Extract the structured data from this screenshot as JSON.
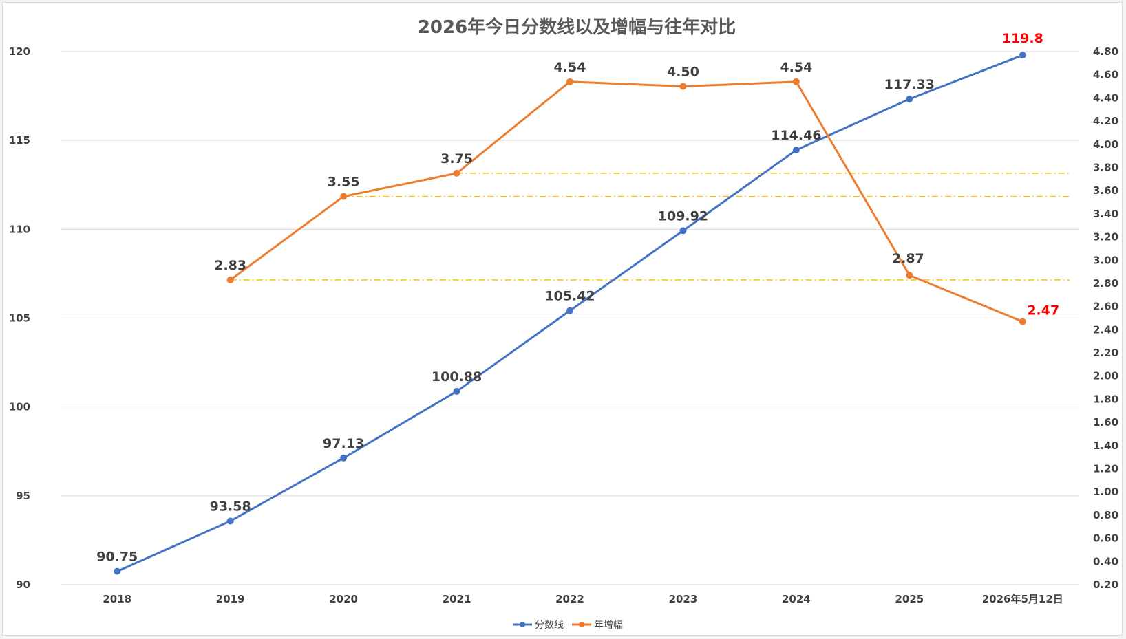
{
  "chart_data": {
    "type": "line",
    "title": "2026年今日分数线以及增幅与往年对比",
    "categories": [
      "2018",
      "2019",
      "2020",
      "2021",
      "2022",
      "2023",
      "2024",
      "2025",
      "2026年5月12日"
    ],
    "series": [
      {
        "name": "分数线",
        "axis": "left",
        "color": "#4472c4",
        "values": [
          90.75,
          93.58,
          97.13,
          100.88,
          105.42,
          109.92,
          114.46,
          117.33,
          119.8
        ],
        "labels": [
          "90.75",
          "93.58",
          "97.13",
          "100.88",
          "105.42",
          "109.92",
          "114.46",
          "117.33",
          "119.8"
        ],
        "highlight_last": true
      },
      {
        "name": "年增幅",
        "axis": "right",
        "color": "#ed7d31",
        "values": [
          null,
          2.83,
          3.55,
          3.75,
          4.54,
          4.5,
          4.54,
          2.87,
          2.47
        ],
        "labels": [
          "",
          "2.83",
          "3.55",
          "3.75",
          "4.54",
          "4.50",
          "4.54",
          "2.87",
          "2.47"
        ],
        "highlight_last": true
      }
    ],
    "left_axis": {
      "ylim": [
        90,
        120
      ],
      "ticks": [
        "90",
        "95",
        "100",
        "105",
        "110",
        "115",
        "120"
      ]
    },
    "right_axis": {
      "ylim": [
        0.2,
        4.8
      ],
      "ticks": [
        "0.20",
        "0.40",
        "0.60",
        "0.80",
        "1.00",
        "1.20",
        "1.40",
        "1.60",
        "1.80",
        "2.00",
        "2.20",
        "2.40",
        "2.60",
        "2.80",
        "3.00",
        "3.20",
        "3.40",
        "3.60",
        "3.80",
        "4.00",
        "4.20",
        "4.40",
        "4.60",
        "4.80"
      ]
    },
    "reference_lines": [
      {
        "axis": "right",
        "value": 3.75,
        "from_category": "2021",
        "color": "#ffc000",
        "style": "dash-dot"
      },
      {
        "axis": "right",
        "value": 3.55,
        "from_category": "2020",
        "color": "#ffc000",
        "style": "dash-dot"
      },
      {
        "axis": "right",
        "value": 2.83,
        "from_category": "2019",
        "color": "#ffc000",
        "style": "dash-dot"
      }
    ],
    "grid": true,
    "legend_position": "bottom",
    "highlight_color": "#ff0000"
  }
}
